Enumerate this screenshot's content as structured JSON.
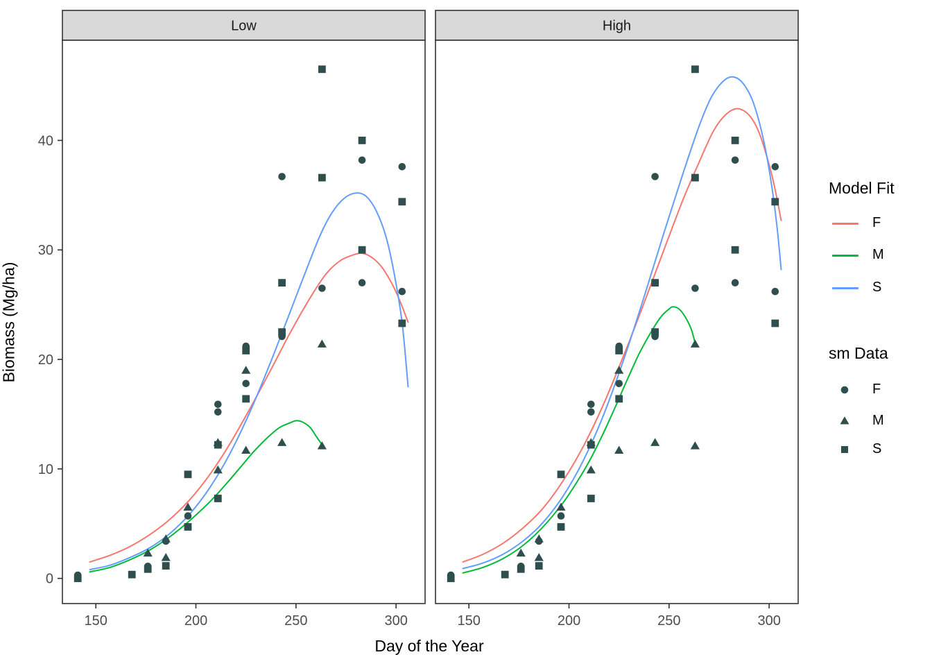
{
  "chart_data": {
    "type": "scatter+line",
    "title": "",
    "xlabel": "Day of the Year",
    "ylabel": "Biomass (Mg/ha)",
    "xlim": [
      133.3,
      314.5
    ],
    "ylim": [
      -2.3,
      49.15
    ],
    "x_ticks": [
      150,
      200,
      250,
      300
    ],
    "y_ticks": [
      0,
      10,
      20,
      30,
      40
    ],
    "grid": "off",
    "legend_position": "right",
    "colors": {
      "fit_F": "#F8766D",
      "fit_M": "#00BA38",
      "fit_S": "#619CFF",
      "points": "#2F4F4F",
      "strip_fill": "#D9D9D9",
      "panel_border": "#333333",
      "tick_text": "#4D4D4D",
      "strip_text": "#1A1A1A"
    },
    "legend": {
      "line_title": "Model Fit",
      "point_title": "sm Data",
      "line_entries": [
        "F",
        "M",
        "S"
      ],
      "point_entries": [
        "F",
        "M",
        "S"
      ]
    },
    "facets": [
      {
        "label": "Low",
        "fit_lines": {
          "F": [
            [
              147,
              1.5
            ],
            [
              157,
              2.1
            ],
            [
              167,
              2.9
            ],
            [
              177,
              4.0
            ],
            [
              187,
              5.4
            ],
            [
              197,
              7.2
            ],
            [
              207,
              9.5
            ],
            [
              217,
              12.3
            ],
            [
              227,
              15.5
            ],
            [
              237,
              18.9
            ],
            [
              247,
              22.4
            ],
            [
              257,
              25.6
            ],
            [
              265,
              27.8
            ],
            [
              272,
              29.0
            ],
            [
              278,
              29.5
            ],
            [
              283,
              29.7
            ],
            [
              288,
              29.3
            ],
            [
              293,
              28.4
            ],
            [
              298,
              26.9
            ],
            [
              302,
              25.3
            ],
            [
              306,
              23.4
            ]
          ],
          "M": [
            [
              147,
              0.6
            ],
            [
              157,
              1.0
            ],
            [
              167,
              1.7
            ],
            [
              177,
              2.6
            ],
            [
              187,
              3.8
            ],
            [
              197,
              5.3
            ],
            [
              207,
              7.0
            ],
            [
              215,
              8.6
            ],
            [
              222,
              10.1
            ],
            [
              229,
              11.6
            ],
            [
              236,
              12.9
            ],
            [
              242,
              13.8
            ],
            [
              247,
              14.2
            ],
            [
              250,
              14.4
            ],
            [
              253,
              14.3
            ],
            [
              257,
              13.8
            ],
            [
              260,
              13.0
            ],
            [
              263,
              12.2
            ]
          ],
          "S": [
            [
              147,
              0.8
            ],
            [
              157,
              1.2
            ],
            [
              167,
              1.9
            ],
            [
              177,
              2.8
            ],
            [
              187,
              4.1
            ],
            [
              197,
              5.9
            ],
            [
              207,
              8.3
            ],
            [
              217,
              11.4
            ],
            [
              227,
              15.2
            ],
            [
              237,
              19.6
            ],
            [
              247,
              24.3
            ],
            [
              255,
              28.1
            ],
            [
              262,
              31.3
            ],
            [
              268,
              33.4
            ],
            [
              274,
              34.7
            ],
            [
              280,
              35.2
            ],
            [
              285,
              34.9
            ],
            [
              290,
              33.6
            ],
            [
              295,
              31.2
            ],
            [
              299,
              27.9
            ],
            [
              303,
              23.4
            ],
            [
              306,
              17.5
            ]
          ]
        }
      },
      {
        "label": "High",
        "fit_lines": {
          "F": [
            [
              147,
              1.5
            ],
            [
              157,
              2.2
            ],
            [
              167,
              3.2
            ],
            [
              177,
              4.6
            ],
            [
              187,
              6.4
            ],
            [
              197,
              8.9
            ],
            [
              207,
              12.0
            ],
            [
              217,
              15.8
            ],
            [
              227,
              20.2
            ],
            [
              237,
              24.9
            ],
            [
              247,
              29.8
            ],
            [
              257,
              34.6
            ],
            [
              265,
              38.0
            ],
            [
              272,
              40.8
            ],
            [
              278,
              42.3
            ],
            [
              284,
              42.9
            ],
            [
              290,
              42.3
            ],
            [
              295,
              40.7
            ],
            [
              300,
              37.8
            ],
            [
              303,
              35.5
            ],
            [
              306,
              32.7
            ]
          ],
          "M": [
            [
              147,
              0.5
            ],
            [
              157,
              1.0
            ],
            [
              167,
              1.8
            ],
            [
              177,
              3.0
            ],
            [
              187,
              4.7
            ],
            [
              197,
              6.9
            ],
            [
              205,
              9.1
            ],
            [
              211,
              11.0
            ],
            [
              217,
              13.2
            ],
            [
              223,
              15.6
            ],
            [
              229,
              18.1
            ],
            [
              235,
              20.5
            ],
            [
              241,
              22.5
            ],
            [
              246,
              23.9
            ],
            [
              250,
              24.6
            ],
            [
              252,
              24.8
            ],
            [
              255,
              24.6
            ],
            [
              258,
              23.9
            ],
            [
              261,
              22.8
            ],
            [
              263,
              21.5
            ]
          ],
          "S": [
            [
              147,
              0.9
            ],
            [
              157,
              1.4
            ],
            [
              167,
              2.2
            ],
            [
              177,
              3.4
            ],
            [
              187,
              5.1
            ],
            [
              197,
              7.5
            ],
            [
              207,
              10.7
            ],
            [
              217,
              14.8
            ],
            [
              227,
              19.8
            ],
            [
              237,
              25.4
            ],
            [
              247,
              31.3
            ],
            [
              257,
              37.0
            ],
            [
              265,
              41.3
            ],
            [
              271,
              43.9
            ],
            [
              277,
              45.4
            ],
            [
              282,
              45.8
            ],
            [
              287,
              45.2
            ],
            [
              292,
              43.5
            ],
            [
              297,
              40.2
            ],
            [
              301,
              36.2
            ],
            [
              304,
              32.0
            ],
            [
              306,
              28.2
            ]
          ]
        }
      }
    ],
    "scatter_shared_across_facets": true,
    "scatter_series": {
      "F": [
        [
          141,
          0.3
        ],
        [
          176,
          1.1
        ],
        [
          185,
          3.4
        ],
        [
          196,
          5.7
        ],
        [
          211,
          15.2
        ],
        [
          211,
          15.9
        ],
        [
          225,
          17.8
        ],
        [
          225,
          21.2
        ],
        [
          243,
          22.1
        ],
        [
          243,
          36.7
        ],
        [
          263,
          26.5
        ],
        [
          283,
          27.0
        ],
        [
          283,
          38.2
        ],
        [
          303,
          26.2
        ],
        [
          303,
          37.6
        ]
      ],
      "M": [
        [
          176,
          2.3
        ],
        [
          185,
          1.9
        ],
        [
          185,
          3.6
        ],
        [
          196,
          6.5
        ],
        [
          211,
          9.9
        ],
        [
          211,
          12.4
        ],
        [
          225,
          11.7
        ],
        [
          225,
          19.0
        ],
        [
          243,
          12.4
        ],
        [
          263,
          12.1
        ],
        [
          263,
          21.4
        ]
      ],
      "S": [
        [
          141,
          0.0
        ],
        [
          168,
          0.35
        ],
        [
          176,
          0.85
        ],
        [
          185,
          1.15
        ],
        [
          196,
          4.7
        ],
        [
          196,
          9.5
        ],
        [
          211,
          7.3
        ],
        [
          211,
          12.2
        ],
        [
          225,
          16.4
        ],
        [
          225,
          20.8
        ],
        [
          243,
          22.5
        ],
        [
          243,
          27.0
        ],
        [
          263,
          36.6
        ],
        [
          263,
          46.5
        ],
        [
          283,
          30.0
        ],
        [
          283,
          40.0
        ],
        [
          303,
          23.3
        ],
        [
          303,
          34.4
        ]
      ]
    }
  }
}
